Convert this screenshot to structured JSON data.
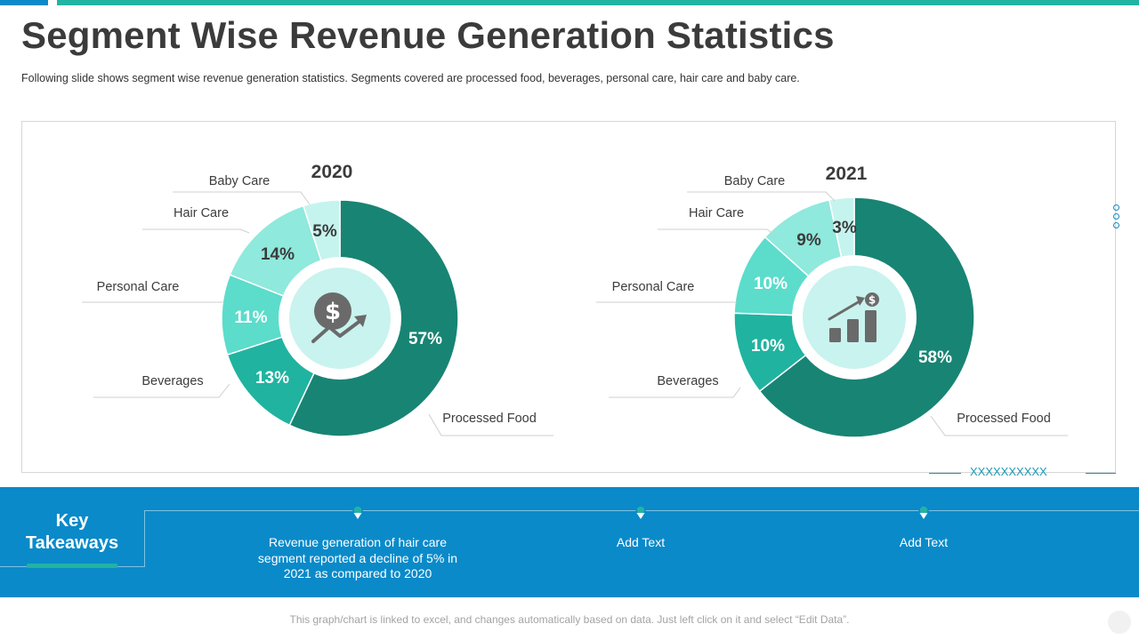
{
  "title": "Segment Wise Revenue Generation Statistics",
  "subtitle": "Following slide shows segment wise revenue  generation  statistics. Segments covered  are processed food,  beverages,  personal care, hair care and baby care.",
  "chart_data": [
    {
      "type": "pie",
      "variant": "donut",
      "title": "2020",
      "center_icon": "dollar-growth-icon",
      "categories": [
        "Processed Food",
        "Beverages",
        "Personal Care",
        "Hair Care",
        "Baby Care"
      ],
      "values": [
        57,
        13,
        11,
        14,
        5
      ],
      "value_labels": [
        "57%",
        "13%",
        "11%",
        "14%",
        "5%"
      ],
      "colors": [
        "#188474",
        "#20b3a0",
        "#5cdccb",
        "#8fe9dc",
        "#c5f4ef"
      ]
    },
    {
      "type": "pie",
      "variant": "donut",
      "title": "2021",
      "center_icon": "bar-chart-growth-icon",
      "categories": [
        "Processed Food",
        "Beverages",
        "Personal Care",
        "Hair Care",
        "Baby Care"
      ],
      "values": [
        58,
        10,
        10,
        9,
        3
      ],
      "value_labels": [
        "58%",
        "10%",
        "10%",
        "9%",
        "3%"
      ],
      "colors": [
        "#188474",
        "#20b3a0",
        "#5cdccb",
        "#8fe9dc",
        "#c5f4ef"
      ]
    }
  ],
  "decoration": {
    "x_pattern": "XXXXXXXXXX"
  },
  "takeaways": {
    "label_line1": "Key",
    "label_line2": "Takeaways",
    "items": [
      "Revenue generation of hair care segment reported a decline of 5% in 2021 as compared to 2020",
      "Add Text",
      "Add Text"
    ]
  },
  "footer": "This graph/chart is linked to excel, and changes automatically based on data.  Just left click on it and select “Edit Data”."
}
